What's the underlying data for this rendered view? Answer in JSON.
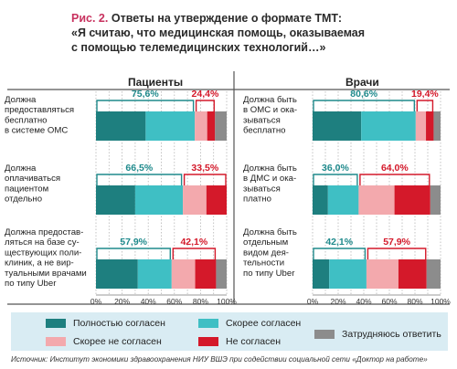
{
  "title": {
    "fig_label": "Рис. 2.",
    "line1": "Ответы на утверждение о формате ТМТ:",
    "line2": "«Я считаю, что медицинская помощь, оказываемая",
    "line3": "с помощью телемедицинских технологий…»"
  },
  "colors": {
    "full_agree": "#1e7f7f",
    "rather_agree": "#3fbfc4",
    "rather_disagree": "#f3a9ad",
    "disagree": "#d4192a",
    "undecided": "#8c8c8c",
    "agree_callout": "#1f8a8c",
    "disagree_callout": "#d4192a"
  },
  "chart_data": [
    {
      "type": "bar",
      "stacked": true,
      "orientation": "horizontal",
      "title": "Пациенты",
      "categories": [
        "Должна предоставляться бесплатно в системе ОМС",
        "Должна оплачиваться пациентом отдельно",
        "Должна предоставляться на базе существующих поликлиник, а не виртуальными врачами по типу Uber"
      ],
      "category_lines": [
        [
          "Должна",
          "предоставляться",
          "бесплатно",
          "в системе ОМС"
        ],
        [
          "Должна",
          "оплачиваться",
          "пациентом",
          "отдельно"
        ],
        [
          "Должна предостав-",
          "ляться на базе су-",
          "ществующих поли-",
          "клиник, а не вир-",
          "туальными врачами",
          "по типу Uber"
        ]
      ],
      "series": [
        {
          "name": "Полностью согласен",
          "values": [
            38,
            30,
            32
          ]
        },
        {
          "name": "Скорее согласен",
          "values": [
            37.6,
            36.5,
            25.9
          ]
        },
        {
          "name": "Скорее не согласен",
          "values": [
            9.5,
            18,
            18
          ]
        },
        {
          "name": "Не согласен",
          "values": [
            6,
            15.5,
            16
          ]
        },
        {
          "name": "Затрудняюсь ответить",
          "values": [
            8.9,
            0,
            8.1
          ]
        }
      ],
      "agree_totals": [
        "75,6%",
        "66,5%",
        "57,9%"
      ],
      "disagree_totals": [
        "24,4%",
        "33,5%",
        "42,1%"
      ],
      "xticks": [
        "0%",
        "20%",
        "40%",
        "60%",
        "80%",
        "100%"
      ],
      "xlim": [
        0,
        100
      ]
    },
    {
      "type": "bar",
      "stacked": true,
      "orientation": "horizontal",
      "title": "Врачи",
      "categories": [
        "Должна быть в ОМС и оказываться бесплатно",
        "Должна быть в ДМС и оказываться платно",
        "Должна быть отдельным видом деятельности по типу Uber"
      ],
      "category_lines": [
        [
          "Должна быть",
          "в ОМС и ока-",
          "зываться",
          "бесплатно"
        ],
        [
          "Должна быть",
          "в ДМС и ока-",
          "зываться",
          "платно"
        ],
        [
          "Должна быть",
          "отдельным",
          "видом дея-",
          "тельности",
          "по типу Uber"
        ]
      ],
      "series": [
        {
          "name": "Полностью согласен",
          "values": [
            38,
            12,
            13
          ]
        },
        {
          "name": "Скорее согласен",
          "values": [
            42.6,
            24,
            29.1
          ]
        },
        {
          "name": "Скорее не согласен",
          "values": [
            8,
            28,
            25
          ]
        },
        {
          "name": "Не согласен",
          "values": [
            6,
            28,
            22
          ]
        },
        {
          "name": "Затрудняюсь ответить",
          "values": [
            5.4,
            8,
            10.9
          ]
        }
      ],
      "agree_totals": [
        "80,6%",
        "36,0%",
        "42,1%"
      ],
      "disagree_totals": [
        "19,4%",
        "64,0%",
        "57,9%"
      ],
      "xticks": [
        "0%",
        "20%",
        "40%",
        "60%",
        "80%",
        "100%"
      ],
      "xlim": [
        0,
        100
      ]
    }
  ],
  "legend": [
    {
      "label": "Полностью согласен",
      "color_key": "full_agree"
    },
    {
      "label": "Скорее согласен",
      "color_key": "rather_agree"
    },
    {
      "label": "Затрудняюсь ответить",
      "color_key": "undecided"
    },
    {
      "label": "Скорее не согласен",
      "color_key": "rather_disagree"
    },
    {
      "label": "Не согласен",
      "color_key": "disagree"
    }
  ],
  "source": "Источник: Институт экономики здравоохранения НИУ ВШЭ при содействии социальной сети «Доктор на работе»"
}
